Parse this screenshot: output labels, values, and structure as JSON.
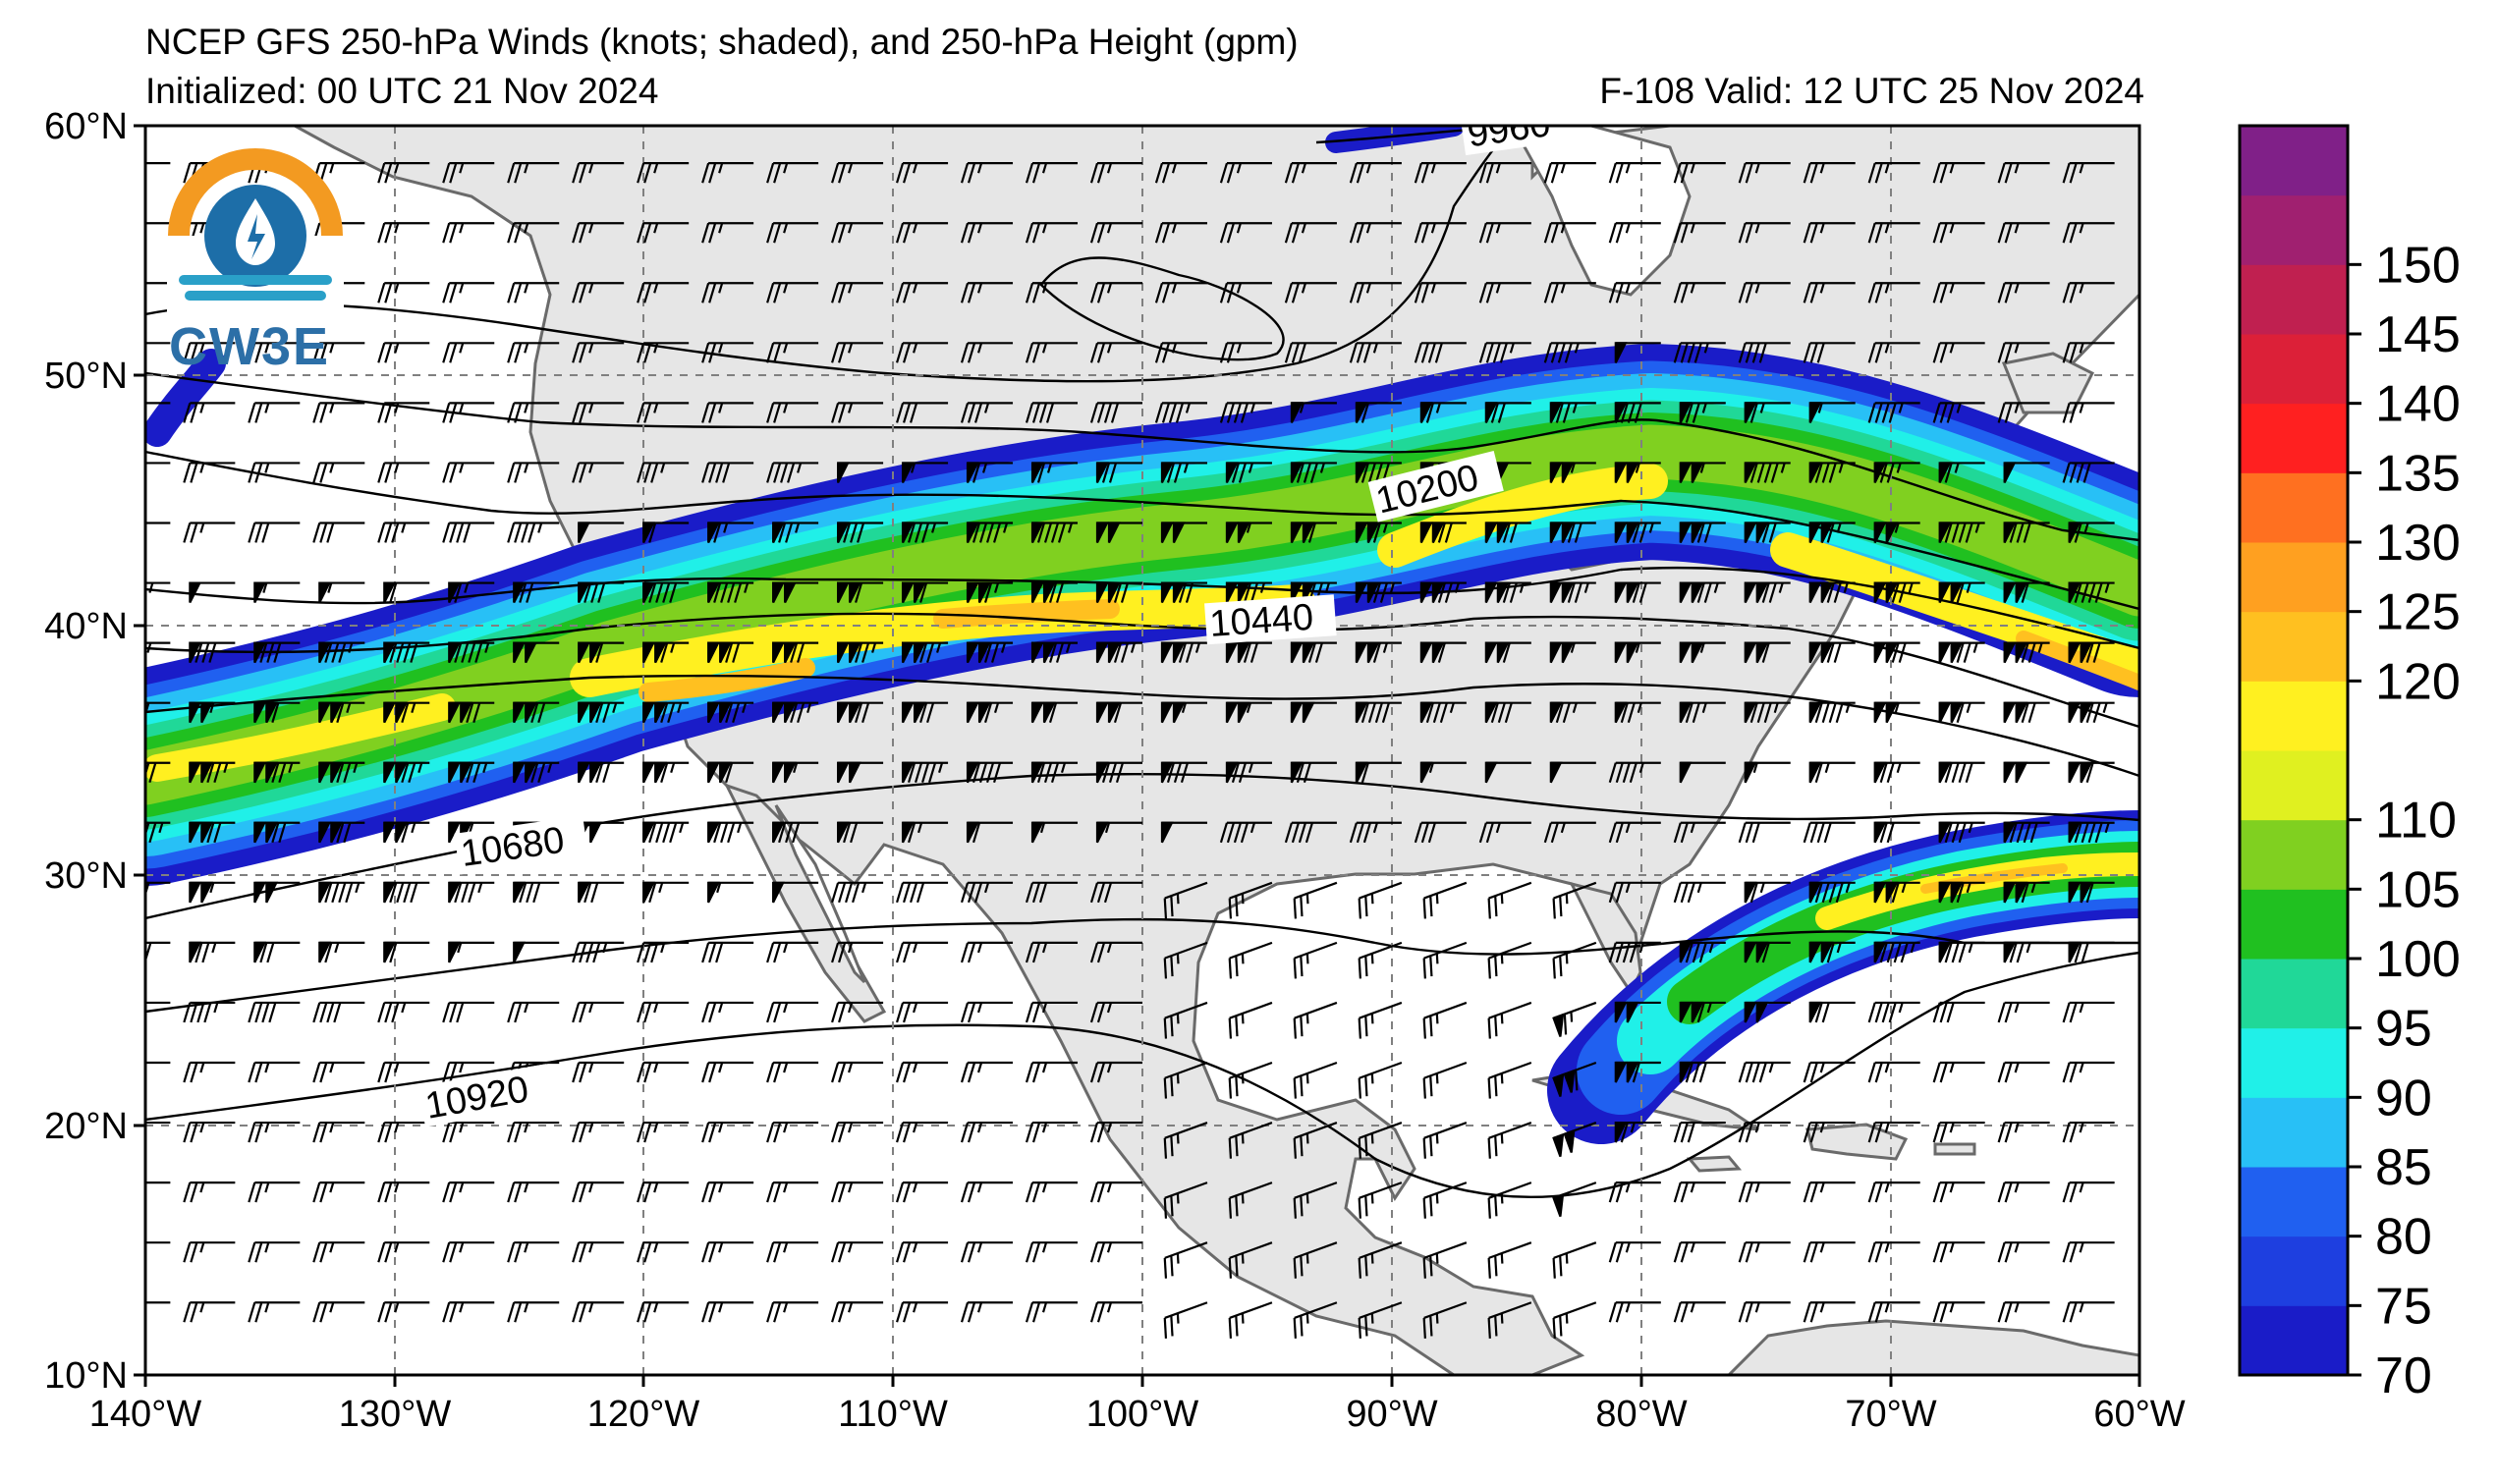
{
  "title_line1": "NCEP GFS 250-hPa Winds (knots; shaded), and 250-hPa Height (gpm)",
  "title_line2": "Initialized: 00 UTC 21 Nov 2024",
  "title_right": "F-108  Valid: 12 UTC 25 Nov 2024",
  "logo_text": "CW3E",
  "map": {
    "lon_range": [
      -140,
      -60
    ],
    "lat_range": [
      10,
      60
    ],
    "lon_ticks": [
      "140°W",
      "130°W",
      "120°W",
      "110°W",
      "100°W",
      "90°W",
      "80°W",
      "70°W",
      "60°W"
    ],
    "lat_ticks": [
      "60°N",
      "50°N",
      "40°N",
      "30°N",
      "20°N",
      "10°N"
    ],
    "grid": true,
    "land_color": "#e6e6e6",
    "ocean_color": "#ffffff"
  },
  "colorbar": {
    "levels": [
      70,
      75,
      80,
      85,
      90,
      95,
      100,
      105,
      110,
      120,
      125,
      130,
      135,
      140,
      145,
      150,
      155
    ],
    "tick_labels": [
      "70",
      "75",
      "80",
      "85",
      "90",
      "95",
      "100",
      "105",
      "110",
      "120",
      "125",
      "130",
      "135",
      "140",
      "145",
      "150"
    ],
    "colors": [
      "#1a1cc8",
      "#1e3fe0",
      "#2060f0",
      "#28c0f6",
      "#20f0e8",
      "#20d898",
      "#20c020",
      "#80d020",
      "#e0f020",
      "#fff020",
      "#ffc020",
      "#ffa020",
      "#ff7020",
      "#ff2020",
      "#dc2038",
      "#c02050",
      "#a02070",
      "#802088"
    ]
  },
  "contours": {
    "labels": [
      "9960",
      "10200",
      "10440",
      "10680",
      "10920"
    ],
    "values": [
      9960,
      10200,
      10440,
      10680,
      10920
    ]
  },
  "jets": [
    {
      "name": "",
      "axis": [
        [
          -140,
          33
        ],
        [
          -125,
          35
        ],
        [
          -115,
          37.5
        ],
        [
          -105,
          39.5
        ],
        [
          -95,
          40.5
        ],
        [
          -85,
          42.5
        ],
        [
          -78,
          43.2
        ],
        [
          -70,
          41
        ],
        [
          -60,
          37
        ]
      ],
      "max_speed": 125
    },
    {
      "name": "",
      "axis": [
        [
          -82,
          21.5
        ],
        [
          -75,
          26
        ],
        [
          -68,
          29.5
        ],
        [
          -60,
          30.5
        ]
      ],
      "max_speed": 115
    }
  ]
}
